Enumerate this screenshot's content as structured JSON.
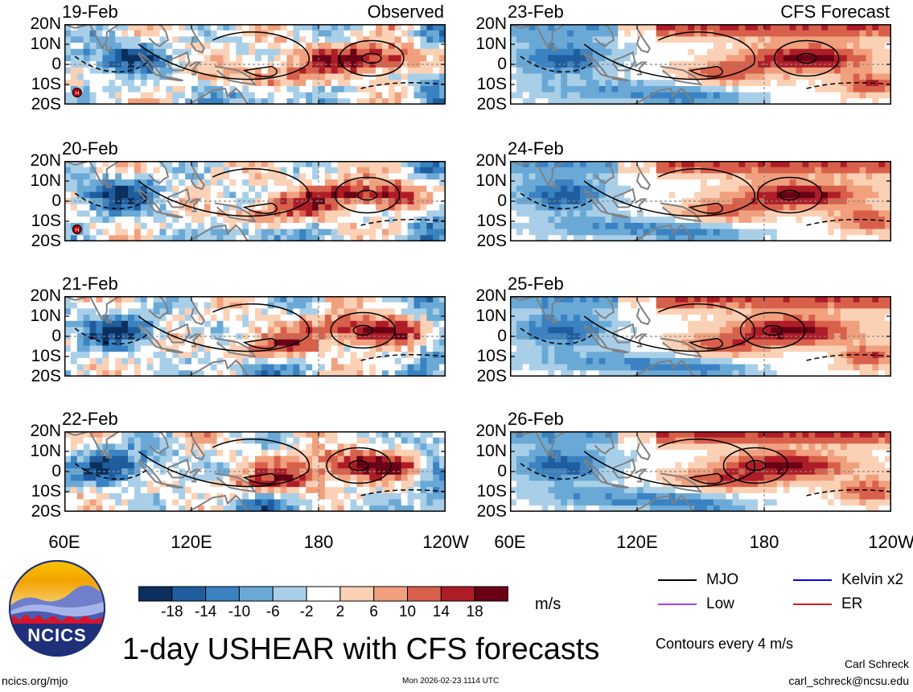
{
  "chart_data": {
    "type": "heatmap",
    "title": "1-day USHEAR with CFS forecasts",
    "variable": "USHEAR",
    "units": "m/s",
    "contour_note": "Contours every 4 m/s",
    "longitude_ticks": [
      "60E",
      "120E",
      "180",
      "120W"
    ],
    "longitude_range": [
      60,
      240
    ],
    "latitude_ticks": [
      "20N",
      "10N",
      "0",
      "10S",
      "20S"
    ],
    "latitude_range": [
      -20,
      20
    ],
    "colorbar_levels": [
      "-18",
      "-14",
      "-10",
      "-6",
      "-2",
      "2",
      "6",
      "10",
      "14",
      "18"
    ],
    "colorbar_colors": [
      "#0b2f5e",
      "#1f5d9e",
      "#3a82c2",
      "#6aa9d6",
      "#a9cfe8",
      "#ffffff",
      "#fbd1b6",
      "#f1a07e",
      "#d8604b",
      "#ae1d27",
      "#6a0016"
    ],
    "columns": [
      {
        "source_label": "Observed",
        "panels": [
          {
            "date": "19-Feb"
          },
          {
            "date": "20-Feb"
          },
          {
            "date": "21-Feb"
          },
          {
            "date": "22-Feb"
          }
        ]
      },
      {
        "source_label": "CFS Forecast",
        "panels": [
          {
            "date": "23-Feb"
          },
          {
            "date": "24-Feb"
          },
          {
            "date": "25-Feb"
          },
          {
            "date": "26-Feb"
          }
        ]
      }
    ],
    "legend": [
      {
        "label": "MJO",
        "color": "#000000"
      },
      {
        "label": "Kelvin x2",
        "color": "#0000ff"
      },
      {
        "label": "Low",
        "color": "#a040ff"
      },
      {
        "label": "ER",
        "color": "#d62020"
      }
    ]
  },
  "logo": {
    "text": "NCICS"
  },
  "footer": {
    "url": "ncics.org/mjo",
    "timestamp": "Mon 2026-02-23 1114 UTC",
    "author": "Carl Schreck",
    "email": "carl_schreck@ncsu.edu"
  }
}
